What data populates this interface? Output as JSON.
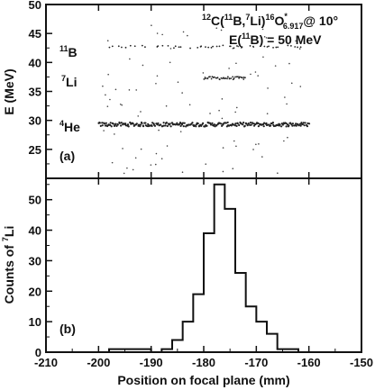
{
  "chart_data": [
    {
      "id": "a",
      "type": "scatter",
      "panel_label": "(a)",
      "title_line1": {
        "pre_sup": "12",
        "a": "C(",
        "sup1": "11",
        "b": "B,",
        "sup2": "7",
        "c": "Li)",
        "sup3": "16",
        "d": "O",
        "sup_star": "*",
        "sub": "6.917",
        "e": "@ 10°"
      },
      "title_line2": {
        "a": "E(",
        "sup": "11",
        "b": "B) = 50 MeV"
      },
      "ylabel": "E (MeV)",
      "ylim": [
        20,
        50
      ],
      "yticks": [
        25,
        30,
        35,
        40,
        45,
        50
      ],
      "xlim": [
        -210,
        -150
      ],
      "xticks": [
        -210,
        -200,
        -190,
        -180,
        -170,
        -160,
        -150
      ],
      "annotations": [
        {
          "sup": "11",
          "base": "B",
          "y": 43
        },
        {
          "sup": "7",
          "base": "Li",
          "y": 37.5
        },
        {
          "sup": "4",
          "base": "He",
          "y": 29.5
        }
      ],
      "series": [
        {
          "label": "11B band",
          "x_range": [
            -198,
            -160
          ],
          "energy": 42.7
        },
        {
          "label": "7Li band",
          "x_range": [
            -180,
            -172
          ],
          "energy": 37.3
        },
        {
          "label": "4He band",
          "x_range": [
            -200,
            -160
          ],
          "energy": 29.3
        }
      ]
    },
    {
      "id": "b",
      "type": "histogram",
      "panel_label": "(b)",
      "ylabel_pre": "Counts of ",
      "ylabel_sup": "7",
      "ylabel_post": "Li",
      "xlabel": "Position on focal plane (mm)",
      "xlim": [
        -210,
        -150
      ],
      "ylim": [
        0,
        57
      ],
      "yticks": [
        0,
        10,
        20,
        30,
        40,
        50
      ],
      "xticks": [
        -210,
        -200,
        -190,
        -180,
        -170,
        -160,
        -150
      ],
      "bin_edges": [
        -198,
        -196,
        -194,
        -192,
        -190,
        -188,
        -186,
        -184,
        -182,
        -180,
        -178,
        -176,
        -174,
        -172,
        -170,
        -168,
        -166,
        -164,
        -162
      ],
      "counts": [
        1,
        1,
        1,
        1,
        0,
        1,
        4,
        10,
        19,
        39,
        55,
        47,
        26,
        15,
        10,
        6,
        1,
        1
      ]
    }
  ]
}
